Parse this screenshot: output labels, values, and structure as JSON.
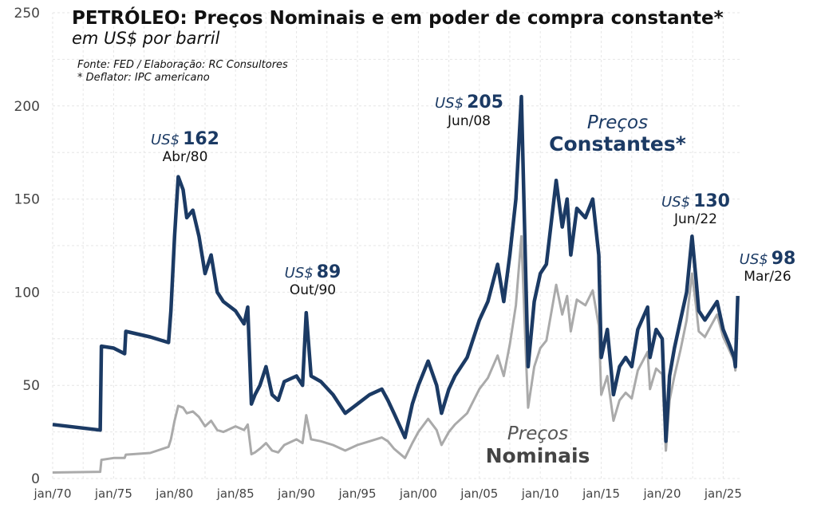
{
  "chart_data": {
    "type": "line",
    "title": "PETRÓLEO: Preços Nominais e em poder de compra constante*",
    "subtitle": "em US$ por barril",
    "notes": [
      "Fonte: FED / Elaboração: RC Consultores",
      "* Deflator: IPC americano"
    ],
    "xlabel": "",
    "ylabel": "",
    "xlim": [
      1970,
      2026.5
    ],
    "ylim": [
      0,
      250
    ],
    "grid": true,
    "y_ticks": [
      0,
      50,
      100,
      150,
      200,
      250
    ],
    "x_ticks": [
      {
        "year": 1970,
        "label": "jan/70"
      },
      {
        "year": 1975,
        "label": "jan/75"
      },
      {
        "year": 1980,
        "label": "jan/80"
      },
      {
        "year": 1985,
        "label": "jan/85"
      },
      {
        "year": 1990,
        "label": "jan/90"
      },
      {
        "year": 1995,
        "label": "jan/95"
      },
      {
        "year": 2000,
        "label": "jan/00"
      },
      {
        "year": 2005,
        "label": "jan/05"
      },
      {
        "year": 2010,
        "label": "jan/10"
      },
      {
        "year": 2015,
        "label": "jan/15"
      },
      {
        "year": 2020,
        "label": "jan/20"
      },
      {
        "year": 2025,
        "label": "jan/25"
      }
    ],
    "x": [
      1970.0,
      1973.9,
      1974.0,
      1975.0,
      1975.9,
      1976.0,
      1978.0,
      1979.5,
      1979.7,
      1980.0,
      1980.3,
      1980.7,
      1981.0,
      1981.5,
      1982.0,
      1982.5,
      1983.0,
      1983.5,
      1984.0,
      1985.0,
      1985.7,
      1986.0,
      1986.3,
      1986.6,
      1987.0,
      1987.5,
      1988.0,
      1988.5,
      1989.0,
      1990.0,
      1990.5,
      1990.8,
      1991.2,
      1992.0,
      1993.0,
      1994.0,
      1995.0,
      1996.0,
      1997.0,
      1997.5,
      1998.0,
      1998.9,
      1999.5,
      2000.0,
      2000.8,
      2001.5,
      2001.9,
      2002.5,
      2003.0,
      2004.0,
      2005.0,
      2005.7,
      2006.5,
      2007.0,
      2007.5,
      2008.0,
      2008.45,
      2008.8,
      2009.0,
      2009.5,
      2010.0,
      2010.5,
      2011.3,
      2011.8,
      2012.2,
      2012.5,
      2013.0,
      2013.7,
      2014.3,
      2014.8,
      2015.0,
      2015.5,
      2016.0,
      2016.5,
      2017.0,
      2017.5,
      2018.0,
      2018.8,
      2019.0,
      2019.5,
      2020.0,
      2020.3,
      2020.6,
      2021.0,
      2021.5,
      2022.0,
      2022.45,
      2022.8,
      2023.0,
      2023.5,
      2024.0,
      2024.5,
      2025.0,
      2025.5,
      2025.9,
      2026.0,
      2026.2
    ],
    "series": [
      {
        "name": "Preços Constantes*",
        "label_line1": "Preços",
        "label_line2": "Constantes*",
        "color": "#1b3a64",
        "values": [
          29,
          26,
          71,
          70,
          67,
          79,
          76,
          73,
          90,
          130,
          162,
          155,
          140,
          144,
          130,
          110,
          120,
          100,
          95,
          90,
          83,
          92,
          40,
          45,
          50,
          60,
          45,
          42,
          52,
          55,
          50,
          89,
          55,
          52,
          45,
          35,
          40,
          45,
          48,
          42,
          35,
          22,
          40,
          50,
          63,
          50,
          35,
          48,
          55,
          65,
          85,
          95,
          115,
          95,
          120,
          150,
          205,
          110,
          60,
          95,
          110,
          115,
          160,
          135,
          150,
          120,
          145,
          140,
          150,
          120,
          65,
          80,
          45,
          60,
          65,
          60,
          80,
          92,
          65,
          80,
          75,
          20,
          55,
          70,
          85,
          100,
          130,
          105,
          90,
          85,
          90,
          95,
          80,
          72,
          65,
          60,
          98
        ]
      },
      {
        "name": "Preços Nominais",
        "label_line1": "Preços",
        "label_line2": "Nominais",
        "color": "#aaaaaa",
        "values": [
          3.2,
          3.6,
          10,
          11,
          11,
          12.8,
          13.7,
          17,
          21,
          31,
          39,
          38,
          35,
          36,
          33,
          28,
          31,
          26,
          25,
          28,
          26,
          29,
          13,
          14,
          16,
          19,
          15,
          14,
          18,
          21,
          19,
          34,
          21,
          20,
          18,
          15,
          18,
          20,
          22,
          20,
          16,
          11,
          19,
          25,
          32,
          26,
          18,
          25,
          29,
          35,
          48,
          54,
          66,
          55,
          72,
          93,
          130,
          69,
          38,
          60,
          70,
          74,
          104,
          88,
          98,
          79,
          96,
          93,
          101,
          82,
          45,
          55,
          31,
          42,
          46,
          43,
          58,
          68,
          48,
          59,
          56,
          15,
          42,
          55,
          69,
          85,
          110,
          91,
          79,
          76,
          82,
          88,
          76,
          69,
          63,
          58,
          95
        ]
      }
    ],
    "annotations": [
      {
        "prefix": "US$",
        "value": "162",
        "date": "Abr/80"
      },
      {
        "prefix": "US$",
        "value": "89",
        "date": "Out/90"
      },
      {
        "prefix": "US$",
        "value": "205",
        "date": "Jun/08"
      },
      {
        "prefix": "US$",
        "value": "130",
        "date": "Jun/22"
      },
      {
        "prefix": "US$",
        "value": "98",
        "date": "Mar/26"
      }
    ]
  }
}
